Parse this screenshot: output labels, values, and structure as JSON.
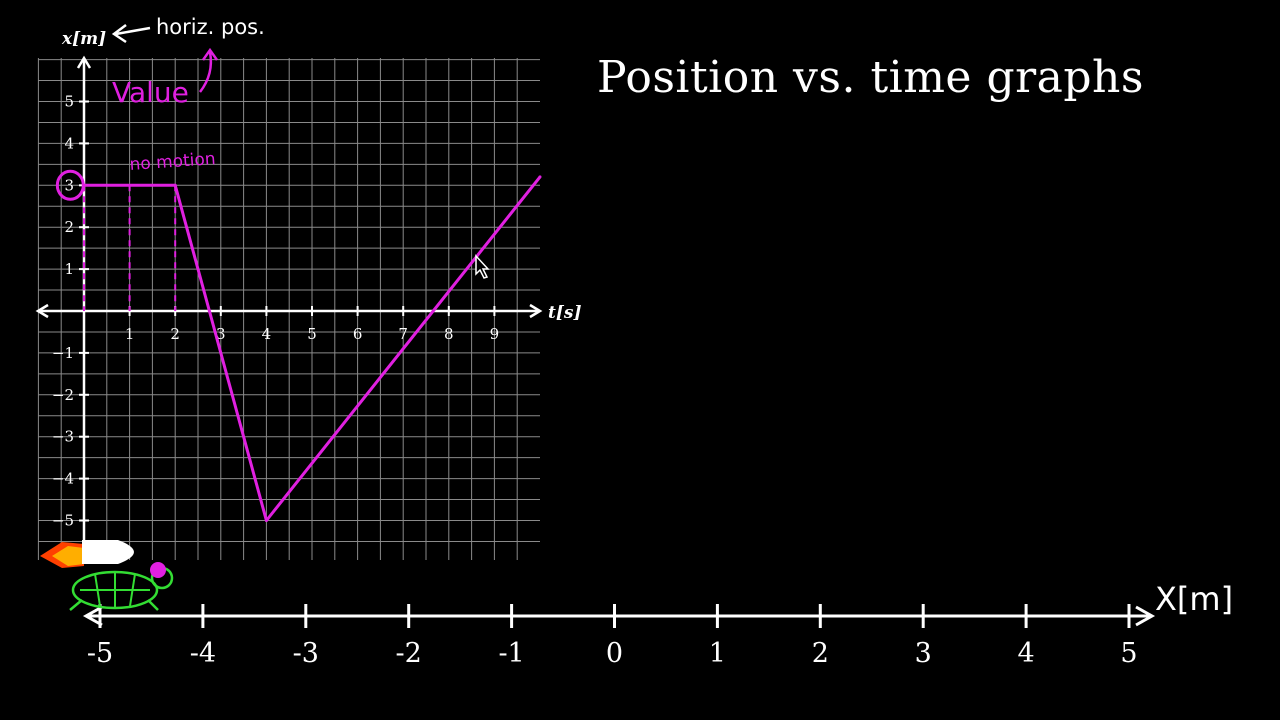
{
  "page": {
    "title": "Position vs. time graphs"
  },
  "annotations": {
    "horiz_pos": "horiz. pos.",
    "value": "Value",
    "no_motion": "no motion"
  },
  "colors": {
    "background": "#000000",
    "grid": "#8a8a8a",
    "axis": "#ffffff",
    "series": "#e020e0",
    "rocket_flame": "#ff4000",
    "turtle": "#33dd33"
  },
  "chart_data": {
    "type": "line",
    "xlabel": "t[s]",
    "ylabel": "x[m]",
    "xlim": [
      -1,
      10
    ],
    "ylim": [
      -6,
      6
    ],
    "grid": true,
    "x_ticks": [
      1,
      2,
      3,
      4,
      5,
      6,
      7,
      8,
      9
    ],
    "y_ticks": [
      -5,
      -4,
      -3,
      -2,
      -1,
      1,
      2,
      3,
      4,
      5
    ],
    "series": [
      {
        "name": "",
        "points": [
          [
            0,
            3
          ],
          [
            2,
            3
          ],
          [
            4,
            -5
          ],
          [
            10,
            3.2
          ]
        ]
      }
    ]
  },
  "number_line": {
    "label": "X[m]",
    "ticks": [
      -5,
      -4,
      -3,
      -2,
      -1,
      0,
      1,
      2,
      3,
      4,
      5
    ]
  }
}
